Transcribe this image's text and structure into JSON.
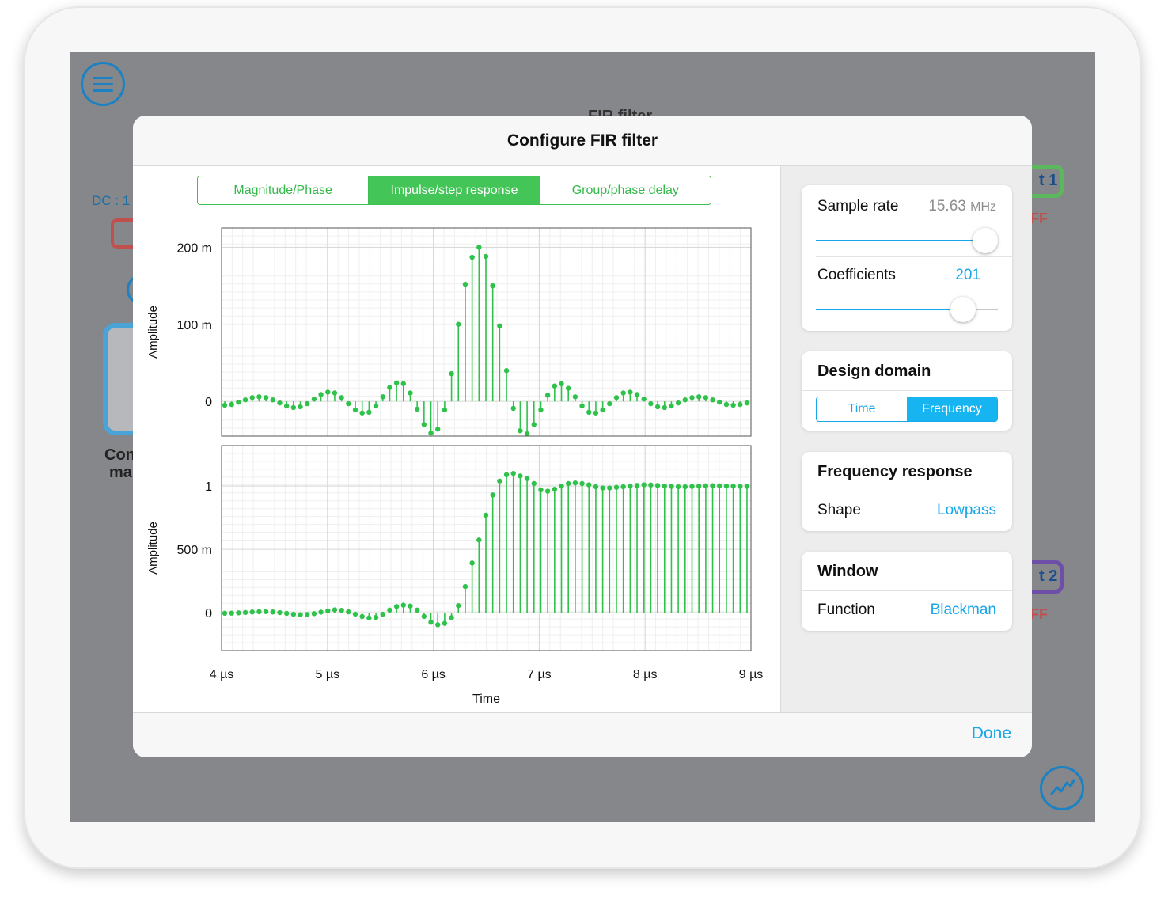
{
  "background": {
    "title": "FIR filter",
    "dc_label": "DC : 1",
    "tile_text_1": "Con",
    "tile_text_2": "ma",
    "out1": "t 1",
    "out2": "t 2",
    "off1": "FF",
    "off2": "FF"
  },
  "dialog": {
    "title": "Configure FIR filter",
    "done_label": "Done",
    "tabs": [
      {
        "label": "Magnitude/Phase",
        "active": false
      },
      {
        "label": "Impulse/step response",
        "active": true
      },
      {
        "label": "Group/phase delay",
        "active": false
      }
    ]
  },
  "settings": {
    "sample_rate": {
      "label": "Sample rate",
      "value": "15.63",
      "unit": "MHz",
      "slider_fraction": 0.93
    },
    "coefficients": {
      "label": "Coefficients",
      "value": "201",
      "slider_fraction": 0.81
    },
    "design_domain": {
      "title": "Design domain",
      "options": [
        "Time",
        "Frequency"
      ],
      "selected": "Frequency"
    },
    "frequency_response": {
      "title": "Frequency response",
      "shape_label": "Shape",
      "shape_value": "Lowpass"
    },
    "window": {
      "title": "Window",
      "function_label": "Function",
      "function_value": "Blackman"
    }
  },
  "colors": {
    "accent_blue": "#17a6e8",
    "plot_green": "#2fc24a",
    "tab_green": "#43c558"
  },
  "chart_data": [
    {
      "type": "stem",
      "xlabel": "",
      "ylabel": "Amplitude",
      "xlim": [
        4,
        9
      ],
      "ylim": [
        -0.045,
        0.225
      ],
      "yticks": [
        {
          "v": 0.2,
          "label": "200 m"
        },
        {
          "v": 0.1,
          "label": "100 m"
        },
        {
          "v": 0,
          "label": "0"
        }
      ],
      "x_start": 4.03,
      "x_step": 0.0649,
      "values": [
        -0.005,
        -0.004,
        -0.001,
        0.002,
        0.005,
        0.006,
        0.005,
        0.002,
        -0.002,
        -0.006,
        -0.008,
        -0.007,
        -0.003,
        0.003,
        0.009,
        0.012,
        0.011,
        0.005,
        -0.003,
        -0.011,
        -0.015,
        -0.014,
        -0.006,
        0.006,
        0.018,
        0.024,
        0.023,
        0.011,
        -0.01,
        -0.03,
        -0.041,
        -0.036,
        -0.011,
        0.036,
        0.1,
        0.152,
        0.187,
        0.2,
        0.188,
        0.15,
        0.098,
        0.04,
        -0.009,
        -0.038,
        -0.042,
        -0.03,
        -0.011,
        0.008,
        0.02,
        0.023,
        0.017,
        0.006,
        -0.006,
        -0.014,
        -0.015,
        -0.011,
        -0.003,
        0.005,
        0.011,
        0.012,
        0.009,
        0.003,
        -0.003,
        -0.007,
        -0.008,
        -0.006,
        -0.002,
        0.002,
        0.005,
        0.006,
        0.005,
        0.002,
        -0.001,
        -0.004,
        -0.005,
        -0.004,
        -0.002,
        0.001,
        0.001,
        0.001,
        0.0,
        0.0,
        0.0,
        0.0,
        0.001,
        0.0,
        -0.001,
        0.001,
        0.001,
        0.0,
        0.0,
        0.0,
        0.0,
        0.0,
        0.0,
        0.0
      ]
    },
    {
      "type": "stem",
      "xlabel": "Time",
      "ylabel": "Amplitude",
      "xlim": [
        4,
        9
      ],
      "ylim": [
        -0.3,
        1.32
      ],
      "yticks": [
        {
          "v": 1,
          "label": "1"
        },
        {
          "v": 0.5,
          "label": "500 m"
        },
        {
          "v": 0,
          "label": "0"
        }
      ],
      "xticks": [
        "4 µs",
        "5 µs",
        "6 µs",
        "7 µs",
        "8 µs",
        "9 µs"
      ],
      "x_start": 4.03,
      "x_step": 0.0649,
      "values": [
        -0.005,
        -0.004,
        -0.002,
        0.001,
        0.005,
        0.007,
        0.008,
        0.005,
        0.0,
        -0.006,
        -0.013,
        -0.016,
        -0.014,
        -0.008,
        0.004,
        0.014,
        0.022,
        0.018,
        0.006,
        -0.012,
        -0.031,
        -0.042,
        -0.038,
        -0.013,
        0.02,
        0.048,
        0.059,
        0.052,
        0.02,
        -0.03,
        -0.076,
        -0.096,
        -0.085,
        -0.04,
        0.055,
        0.206,
        0.392,
        0.574,
        0.77,
        0.93,
        1.04,
        1.09,
        1.1,
        1.08,
        1.06,
        1.02,
        0.97,
        0.96,
        0.975,
        1.0,
        1.02,
        1.025,
        1.02,
        1.01,
        0.995,
        0.985,
        0.985,
        0.99,
        0.995,
        1.0,
        1.005,
        1.01,
        1.008,
        1.005,
        1.0,
        0.998,
        0.995,
        0.995,
        0.997,
        1.0,
        1.002,
        1.003,
        1.002,
        1.0,
        0.999,
        0.998,
        0.998,
        0.999,
        1.0,
        1.001,
        1.001,
        1.0,
        1.0,
        1.0,
        1.0,
        1.0,
        1.0,
        1.0,
        1.0,
        1.0,
        1.0,
        1.0,
        1.0,
        1.0,
        1.0,
        1.0,
        1.0,
        1.0,
        1.0,
        1.0
      ]
    }
  ]
}
